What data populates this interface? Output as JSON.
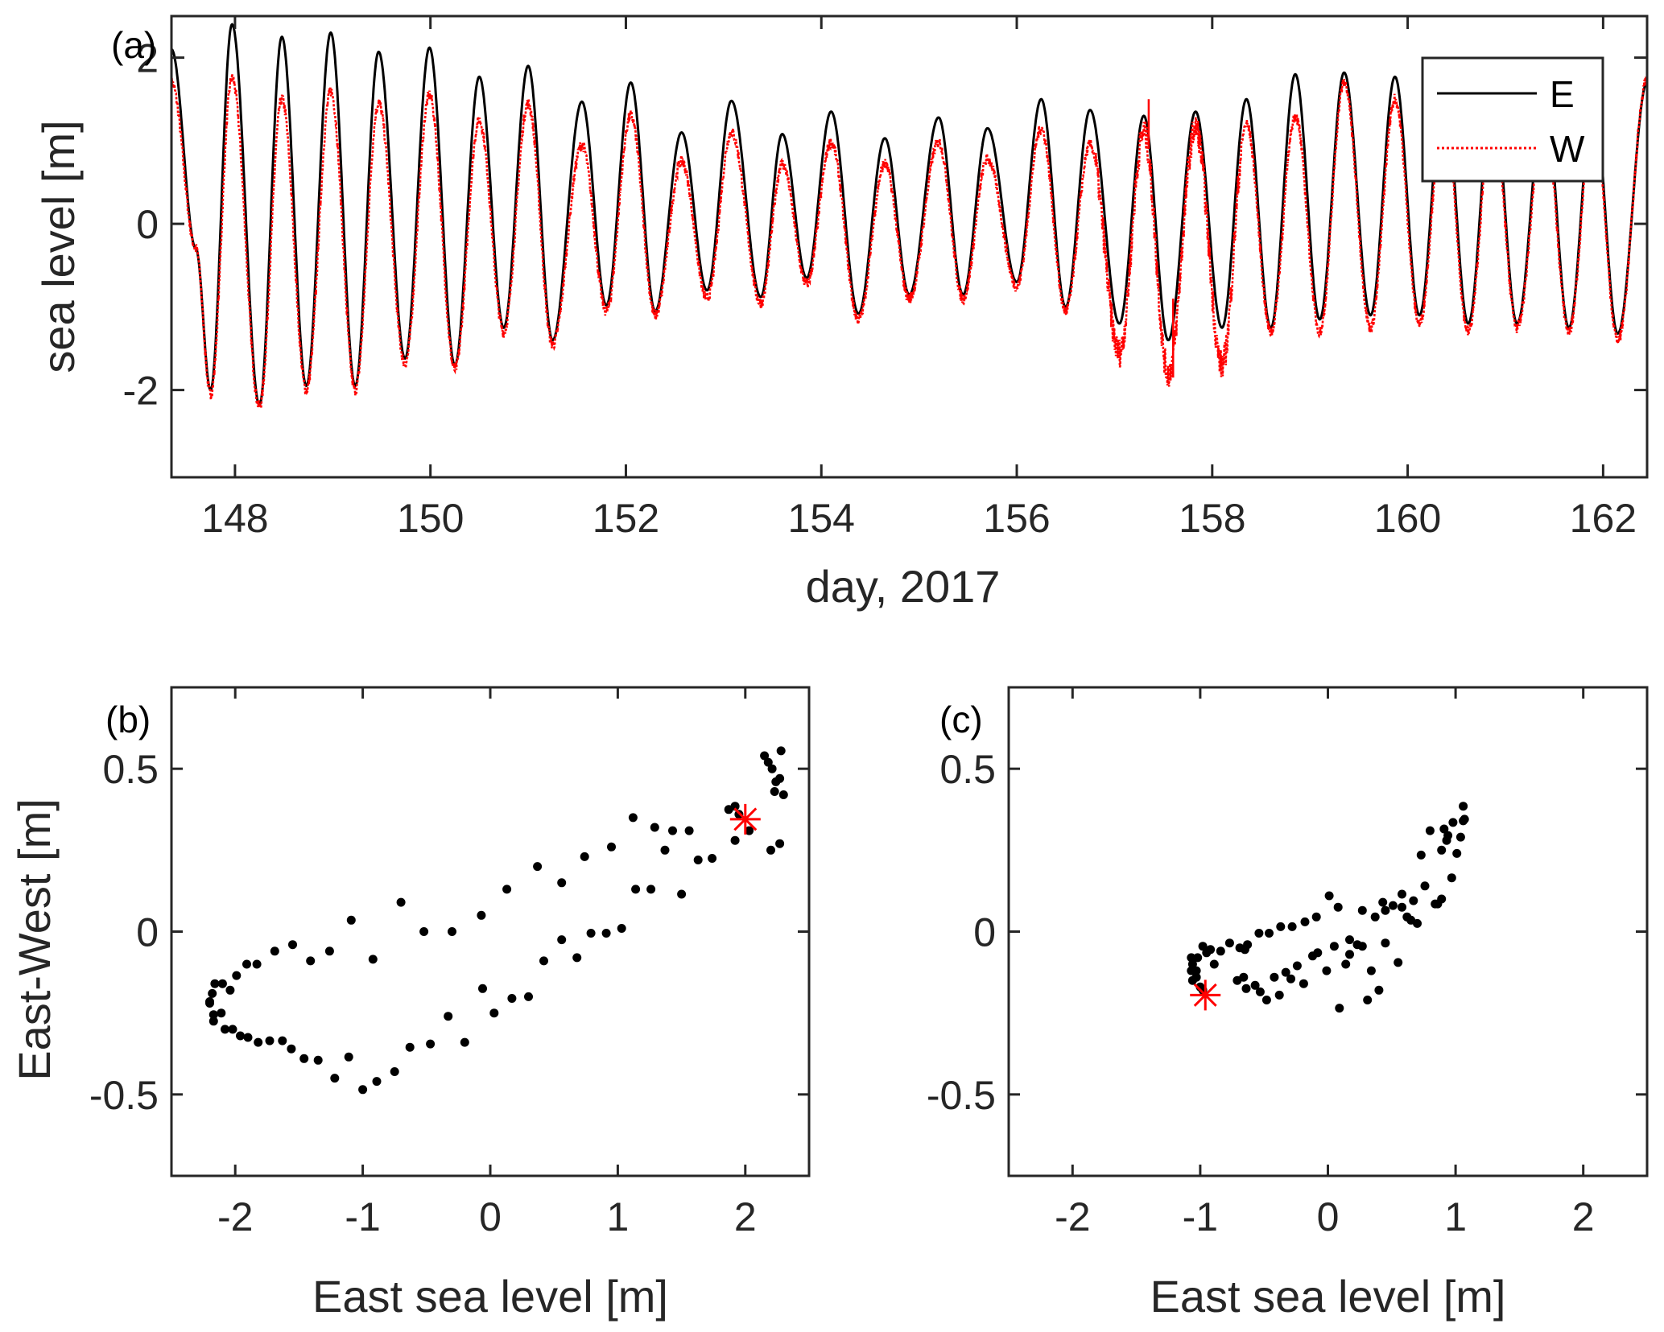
{
  "chart_data": [
    {
      "id": "a",
      "type": "line",
      "panel_label": "(a)",
      "xlabel": "day, 2017",
      "ylabel": "sea level [m]",
      "xlim": [
        147.35,
        162.45
      ],
      "ylim": [
        -3.05,
        2.5
      ],
      "xticks": [
        148,
        150,
        152,
        154,
        156,
        158,
        160,
        162
      ],
      "xtick_labels": [
        "148",
        "150",
        "152",
        "154",
        "156",
        "158",
        "160",
        "162"
      ],
      "yticks": [
        -2,
        0,
        2
      ],
      "ytick_labels": [
        "-2",
        "0",
        "2"
      ],
      "grid": false,
      "legend": {
        "position": "top-right",
        "entries": [
          {
            "label": "E",
            "color": "#000000",
            "style": "solid"
          },
          {
            "label": "W",
            "color": "#ff0000",
            "style": "dotted"
          }
        ]
      },
      "series": [
        {
          "name": "E",
          "color": "#000000",
          "style": "solid",
          "extrema": [
            [
              147.35,
              2.1
            ],
            [
              147.6,
              -0.3
            ],
            [
              147.75,
              -2.0
            ],
            [
              147.97,
              2.4
            ],
            [
              148.25,
              -2.18
            ],
            [
              148.48,
              2.25
            ],
            [
              148.73,
              -1.95
            ],
            [
              148.98,
              2.3
            ],
            [
              149.23,
              -1.95
            ],
            [
              149.47,
              2.07
            ],
            [
              149.74,
              -1.62
            ],
            [
              149.99,
              2.12
            ],
            [
              150.25,
              -1.7
            ],
            [
              150.5,
              1.77
            ],
            [
              150.75,
              -1.25
            ],
            [
              151.0,
              1.9
            ],
            [
              151.25,
              -1.4
            ],
            [
              151.55,
              1.47
            ],
            [
              151.8,
              -0.98
            ],
            [
              152.05,
              1.7
            ],
            [
              152.3,
              -1.05
            ],
            [
              152.57,
              1.1
            ],
            [
              152.83,
              -0.8
            ],
            [
              153.08,
              1.48
            ],
            [
              153.38,
              -0.88
            ],
            [
              153.6,
              1.08
            ],
            [
              153.85,
              -0.65
            ],
            [
              154.1,
              1.35
            ],
            [
              154.38,
              -1.08
            ],
            [
              154.65,
              1.03
            ],
            [
              154.9,
              -0.85
            ],
            [
              155.2,
              1.28
            ],
            [
              155.45,
              -0.85
            ],
            [
              155.7,
              1.15
            ],
            [
              156.0,
              -0.7
            ],
            [
              156.25,
              1.5
            ],
            [
              156.5,
              -1.0
            ],
            [
              156.75,
              1.37
            ],
            [
              157.05,
              -1.2
            ],
            [
              157.3,
              1.3
            ],
            [
              157.55,
              -1.4
            ],
            [
              157.83,
              1.35
            ],
            [
              158.1,
              -1.25
            ],
            [
              158.35,
              1.5
            ],
            [
              158.6,
              -1.25
            ],
            [
              158.85,
              1.8
            ],
            [
              159.1,
              -1.15
            ],
            [
              159.35,
              1.82
            ],
            [
              159.62,
              -1.1
            ],
            [
              159.87,
              1.77
            ],
            [
              160.12,
              -1.1
            ],
            [
              160.37,
              1.65
            ],
            [
              160.62,
              -1.2
            ],
            [
              160.87,
              1.6
            ],
            [
              161.12,
              -1.2
            ],
            [
              161.4,
              1.55
            ],
            [
              161.65,
              -1.25
            ],
            [
              161.9,
              1.5
            ],
            [
              162.15,
              -1.32
            ],
            [
              162.45,
              1.7
            ]
          ]
        },
        {
          "name": "W",
          "color": "#ff0000",
          "style": "dotted",
          "extrema": [
            [
              147.35,
              1.7
            ],
            [
              147.6,
              -0.3
            ],
            [
              147.75,
              -2.05
            ],
            [
              147.97,
              1.75
            ],
            [
              148.25,
              -2.2
            ],
            [
              148.48,
              1.5
            ],
            [
              148.73,
              -2.0
            ],
            [
              148.98,
              1.6
            ],
            [
              149.23,
              -2.0
            ],
            [
              149.47,
              1.45
            ],
            [
              149.74,
              -1.68
            ],
            [
              149.99,
              1.55
            ],
            [
              150.25,
              -1.75
            ],
            [
              150.5,
              1.25
            ],
            [
              150.75,
              -1.3
            ],
            [
              151.0,
              1.45
            ],
            [
              151.25,
              -1.45
            ],
            [
              151.55,
              0.95
            ],
            [
              151.8,
              -1.05
            ],
            [
              152.05,
              1.3
            ],
            [
              152.3,
              -1.1
            ],
            [
              152.57,
              0.75
            ],
            [
              152.83,
              -0.9
            ],
            [
              153.08,
              1.1
            ],
            [
              153.38,
              -0.95
            ],
            [
              153.6,
              0.72
            ],
            [
              153.85,
              -0.72
            ],
            [
              154.1,
              0.98
            ],
            [
              154.38,
              -1.15
            ],
            [
              154.65,
              0.72
            ],
            [
              154.9,
              -0.9
            ],
            [
              155.2,
              0.98
            ],
            [
              155.45,
              -0.9
            ],
            [
              155.7,
              0.78
            ],
            [
              156.0,
              -0.75
            ],
            [
              156.25,
              1.15
            ],
            [
              156.5,
              -1.05
            ],
            [
              156.75,
              0.95
            ],
            [
              157.05,
              -1.55
            ],
            [
              157.3,
              1.1
            ],
            [
              157.55,
              -1.8
            ],
            [
              157.83,
              1.15
            ],
            [
              158.1,
              -1.7
            ],
            [
              158.35,
              1.2
            ],
            [
              158.6,
              -1.3
            ],
            [
              158.85,
              1.3
            ],
            [
              159.1,
              -1.3
            ],
            [
              159.35,
              1.7
            ],
            [
              159.62,
              -1.25
            ],
            [
              159.87,
              1.5
            ],
            [
              160.12,
              -1.2
            ],
            [
              160.37,
              1.4
            ],
            [
              160.62,
              -1.3
            ],
            [
              160.87,
              1.35
            ],
            [
              161.12,
              -1.25
            ],
            [
              161.4,
              1.3
            ],
            [
              161.65,
              -1.3
            ],
            [
              161.9,
              1.35
            ],
            [
              162.15,
              -1.4
            ],
            [
              162.45,
              1.75
            ]
          ]
        }
      ]
    },
    {
      "id": "b",
      "type": "scatter",
      "panel_label": "(b)",
      "xlabel": "East sea level [m]",
      "ylabel": "East-West [m]",
      "xlim": [
        -2.5,
        2.5
      ],
      "ylim": [
        -0.75,
        0.75
      ],
      "xticks": [
        -2,
        -1,
        0,
        1,
        2
      ],
      "xtick_labels": [
        "-2",
        "-1",
        "0",
        "1",
        "2"
      ],
      "yticks": [
        -0.5,
        0,
        0.5
      ],
      "ytick_labels": [
        "-0.5",
        "0",
        "0.5"
      ],
      "grid": false,
      "marker": {
        "name": "start",
        "x": 2.0,
        "y": 0.345,
        "symbol": "asterisk",
        "color": "#ff0000"
      },
      "points": [
        [
          2.15,
          0.54
        ],
        [
          2.18,
          0.52
        ],
        [
          2.21,
          0.5
        ],
        [
          2.28,
          0.555
        ],
        [
          2.24,
          0.46
        ],
        [
          2.27,
          0.47
        ],
        [
          2.23,
          0.43
        ],
        [
          2.3,
          0.42
        ],
        [
          1.87,
          0.375
        ],
        [
          1.92,
          0.385
        ],
        [
          1.95,
          0.36
        ],
        [
          2.03,
          0.31
        ],
        [
          1.92,
          0.28
        ],
        [
          2.2,
          0.25
        ],
        [
          2.27,
          0.27
        ],
        [
          1.12,
          0.35
        ],
        [
          1.29,
          0.32
        ],
        [
          1.43,
          0.31
        ],
        [
          1.56,
          0.31
        ],
        [
          1.37,
          0.25
        ],
        [
          1.63,
          0.22
        ],
        [
          1.74,
          0.225
        ],
        [
          0.95,
          0.26
        ],
        [
          0.74,
          0.23
        ],
        [
          0.37,
          0.2
        ],
        [
          0.56,
          0.15
        ],
        [
          0.13,
          0.13
        ],
        [
          1.14,
          0.13
        ],
        [
          1.26,
          0.13
        ],
        [
          1.5,
          0.115
        ],
        [
          -0.07,
          0.05
        ],
        [
          -0.3,
          0.0
        ],
        [
          -0.52,
          0.0
        ],
        [
          -0.7,
          0.09
        ],
        [
          -1.09,
          0.035
        ],
        [
          0.56,
          -0.025
        ],
        [
          0.79,
          -0.005
        ],
        [
          0.91,
          -0.005
        ],
        [
          1.03,
          0.01
        ],
        [
          0.42,
          -0.09
        ],
        [
          0.68,
          -0.08
        ],
        [
          -0.92,
          -0.085
        ],
        [
          -1.26,
          -0.06
        ],
        [
          -1.41,
          -0.09
        ],
        [
          -1.55,
          -0.04
        ],
        [
          -1.69,
          -0.06
        ],
        [
          -1.83,
          -0.1
        ],
        [
          -1.91,
          -0.1
        ],
        [
          -1.99,
          -0.135
        ],
        [
          -2.04,
          -0.18
        ],
        [
          -2.1,
          -0.16
        ],
        [
          -2.16,
          -0.16
        ],
        [
          -2.18,
          -0.19
        ],
        [
          -2.2,
          -0.215
        ],
        [
          -2.2,
          -0.22
        ],
        [
          -2.17,
          -0.255
        ],
        [
          -2.11,
          -0.25
        ],
        [
          -2.17,
          -0.275
        ],
        [
          -2.08,
          -0.3
        ],
        [
          -2.02,
          -0.3
        ],
        [
          -1.96,
          -0.32
        ],
        [
          -1.9,
          -0.325
        ],
        [
          -1.82,
          -0.34
        ],
        [
          -1.73,
          -0.335
        ],
        [
          -1.63,
          -0.335
        ],
        [
          -1.56,
          -0.36
        ],
        [
          -1.46,
          -0.39
        ],
        [
          -1.35,
          -0.395
        ],
        [
          -1.11,
          -0.385
        ],
        [
          -1.22,
          -0.45
        ],
        [
          -1.0,
          -0.485
        ],
        [
          -0.89,
          -0.46
        ],
        [
          -0.75,
          -0.43
        ],
        [
          -0.63,
          -0.355
        ],
        [
          -0.47,
          -0.345
        ],
        [
          -0.33,
          -0.26
        ],
        [
          -0.2,
          -0.34
        ],
        [
          -0.06,
          -0.175
        ],
        [
          0.03,
          -0.25
        ],
        [
          0.17,
          -0.205
        ],
        [
          0.3,
          -0.2
        ]
      ]
    },
    {
      "id": "c",
      "type": "scatter",
      "panel_label": "(c)",
      "xlabel": "East sea level [m]",
      "ylabel": "",
      "xlim": [
        -2.5,
        2.5
      ],
      "ylim": [
        -0.75,
        0.75
      ],
      "xticks": [
        -2,
        -1,
        0,
        1,
        2
      ],
      "xtick_labels": [
        "-2",
        "-1",
        "0",
        "1",
        "2"
      ],
      "yticks": [
        -0.5,
        0,
        0.5
      ],
      "ytick_labels": [
        "-0.5",
        "0",
        "0.5"
      ],
      "grid": false,
      "marker": {
        "name": "start",
        "x": -0.96,
        "y": -0.195,
        "symbol": "asterisk",
        "color": "#ff0000"
      },
      "points": [
        [
          1.06,
          0.385
        ],
        [
          1.06,
          0.34
        ],
        [
          1.07,
          0.345
        ],
        [
          0.98,
          0.335
        ],
        [
          0.8,
          0.31
        ],
        [
          0.91,
          0.315
        ],
        [
          0.94,
          0.295
        ],
        [
          0.93,
          0.28
        ],
        [
          1.04,
          0.29
        ],
        [
          0.89,
          0.25
        ],
        [
          1.01,
          0.24
        ],
        [
          0.73,
          0.235
        ],
        [
          0.97,
          0.165
        ],
        [
          0.76,
          0.14
        ],
        [
          0.01,
          0.11
        ],
        [
          0.08,
          0.075
        ],
        [
          0.27,
          0.065
        ],
        [
          0.43,
          0.09
        ],
        [
          0.51,
          0.08
        ],
        [
          0.58,
          0.115
        ],
        [
          0.58,
          0.075
        ],
        [
          0.67,
          0.095
        ],
        [
          0.84,
          0.085
        ],
        [
          0.86,
          0.085
        ],
        [
          0.89,
          0.1
        ],
        [
          0.45,
          0.065
        ],
        [
          0.37,
          0.045
        ],
        [
          0.62,
          0.045
        ],
        [
          0.65,
          0.035
        ],
        [
          0.7,
          0.025
        ],
        [
          -0.09,
          0.045
        ],
        [
          -0.18,
          0.03
        ],
        [
          -0.28,
          0.015
        ],
        [
          -0.37,
          0.015
        ],
        [
          -0.46,
          -0.005
        ],
        [
          -0.54,
          -0.005
        ],
        [
          -0.77,
          -0.035
        ],
        [
          -0.63,
          -0.04
        ],
        [
          -0.69,
          -0.05
        ],
        [
          -0.65,
          -0.055
        ],
        [
          -0.84,
          -0.06
        ],
        [
          -0.92,
          -0.055
        ],
        [
          -0.98,
          -0.045
        ],
        [
          -0.95,
          -0.065
        ],
        [
          -1.07,
          -0.08
        ],
        [
          -1.02,
          -0.08
        ],
        [
          -1.06,
          -0.1
        ],
        [
          -1.03,
          -0.12
        ],
        [
          -1.07,
          -0.12
        ],
        [
          -1.06,
          -0.15
        ],
        [
          -1.03,
          -0.14
        ],
        [
          -0.98,
          -0.18
        ],
        [
          -1.0,
          -0.17
        ],
        [
          -0.89,
          -0.1
        ],
        [
          -0.08,
          -0.065
        ],
        [
          -0.12,
          -0.075
        ],
        [
          0.05,
          -0.045
        ],
        [
          0.17,
          -0.025
        ],
        [
          0.23,
          -0.04
        ],
        [
          0.27,
          -0.045
        ],
        [
          0.17,
          -0.07
        ],
        [
          0.45,
          -0.035
        ],
        [
          0.14,
          -0.1
        ],
        [
          0.55,
          -0.095
        ],
        [
          -0.01,
          -0.12
        ],
        [
          0.34,
          -0.12
        ],
        [
          -0.24,
          -0.105
        ],
        [
          -0.33,
          -0.125
        ],
        [
          -0.42,
          -0.14
        ],
        [
          -0.29,
          -0.145
        ],
        [
          -0.71,
          -0.15
        ],
        [
          -0.66,
          -0.14
        ],
        [
          -0.57,
          -0.165
        ],
        [
          -0.19,
          -0.16
        ],
        [
          -0.64,
          -0.175
        ],
        [
          -0.53,
          -0.185
        ],
        [
          -0.38,
          -0.195
        ],
        [
          0.4,
          -0.18
        ],
        [
          0.31,
          -0.21
        ],
        [
          -0.48,
          -0.21
        ],
        [
          0.09,
          -0.235
        ]
      ]
    }
  ]
}
